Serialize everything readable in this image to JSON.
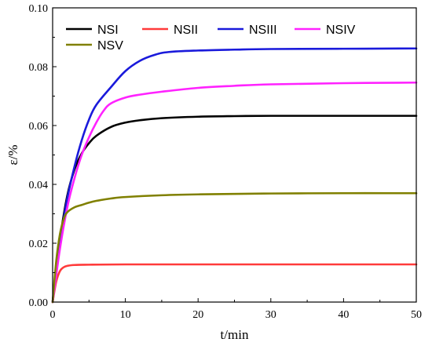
{
  "chart_data": {
    "type": "line",
    "xlabel": "t/min",
    "ylabel": "ε/%",
    "xlim": [
      0,
      50
    ],
    "ylim": [
      0,
      0.1
    ],
    "x_ticks": [
      "0",
      "10",
      "20",
      "30",
      "40",
      "50"
    ],
    "y_ticks": [
      "0.00",
      "0.02",
      "0.04",
      "0.06",
      "0.08",
      "0.10"
    ],
    "grid": false,
    "legend_position": "top-left",
    "series": [
      {
        "name": "NSI",
        "color": "#000000",
        "x": [
          0,
          1,
          2,
          3,
          4,
          5,
          6,
          8,
          10,
          12,
          15,
          20,
          25,
          30,
          40,
          50
        ],
        "y": [
          0,
          0.021,
          0.036,
          0.045,
          0.0505,
          0.054,
          0.0565,
          0.0595,
          0.061,
          0.0618,
          0.0625,
          0.063,
          0.0632,
          0.0633,
          0.0633,
          0.0633
        ]
      },
      {
        "name": "NSII",
        "color": "#ff3b3b",
        "x": [
          0,
          0.5,
          1,
          1.5,
          2,
          3,
          5,
          10,
          20,
          30,
          40,
          50
        ],
        "y": [
          0,
          0.007,
          0.0105,
          0.0118,
          0.0123,
          0.0126,
          0.0127,
          0.0128,
          0.0128,
          0.0128,
          0.0128,
          0.0128
        ]
      },
      {
        "name": "NSIII",
        "color": "#1a1adb",
        "x": [
          0,
          1,
          2,
          3,
          4,
          5,
          6,
          8,
          10,
          12,
          14,
          16,
          20,
          25,
          30,
          40,
          50
        ],
        "y": [
          0,
          0.02,
          0.035,
          0.046,
          0.055,
          0.062,
          0.067,
          0.073,
          0.0785,
          0.082,
          0.084,
          0.085,
          0.0855,
          0.0858,
          0.086,
          0.0861,
          0.0862
        ]
      },
      {
        "name": "NSIV",
        "color": "#ff22ff",
        "x": [
          0,
          1,
          2,
          3,
          4,
          5,
          6,
          7,
          8,
          10,
          12,
          15,
          20,
          25,
          30,
          40,
          50
        ],
        "y": [
          0,
          0.018,
          0.032,
          0.042,
          0.05,
          0.056,
          0.061,
          0.065,
          0.0675,
          0.0695,
          0.0705,
          0.0715,
          0.0728,
          0.0735,
          0.074,
          0.0744,
          0.0746
        ]
      },
      {
        "name": "NSV",
        "color": "#808000",
        "x": [
          0,
          0.5,
          1,
          1.5,
          2,
          3,
          4,
          5,
          6,
          8,
          10,
          15,
          20,
          30,
          40,
          50
        ],
        "y": [
          0,
          0.014,
          0.023,
          0.028,
          0.0305,
          0.0322,
          0.033,
          0.0338,
          0.0344,
          0.0352,
          0.0357,
          0.0363,
          0.0366,
          0.0369,
          0.037,
          0.037
        ]
      }
    ]
  }
}
